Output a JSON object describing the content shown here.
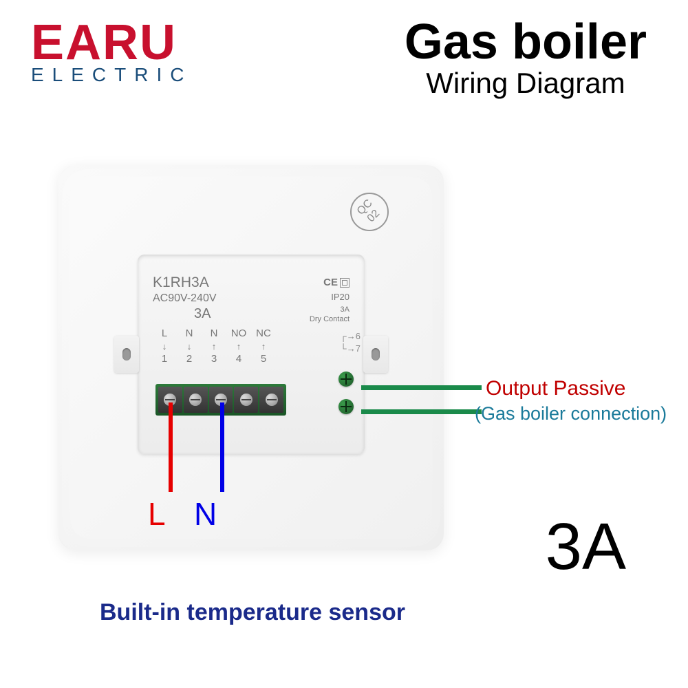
{
  "logo": {
    "main": "EARU",
    "sub": "ELECTRIC",
    "main_color": "#c8102e",
    "sub_color": "#1a4d7a"
  },
  "title": {
    "main": "Gas boiler",
    "sub": "Wiring Diagram"
  },
  "qc": "QC\n02",
  "module": {
    "model": "K1RH3A",
    "voltage": "AC90V-240V",
    "cert": "CE",
    "ip": "IP20",
    "amp": "3A",
    "contact": "Dry Contact",
    "amp_small": "3A",
    "terminals": [
      {
        "name": "L",
        "num": "1",
        "dir": "down"
      },
      {
        "name": "N",
        "num": "2",
        "dir": "down"
      },
      {
        "name": "N",
        "num": "3",
        "dir": "up"
      },
      {
        "name": "NO",
        "num": "4",
        "dir": "up"
      },
      {
        "name": "NC",
        "num": "5",
        "dir": "up"
      }
    ],
    "side_terms": {
      "a": "6",
      "b": "7"
    }
  },
  "wires": {
    "l_label": "L",
    "l_color": "#e60000",
    "n_label": "N",
    "n_color": "#0000e6",
    "output_color": "#1a8a4a"
  },
  "output": {
    "line1": "Output Passive",
    "line2": "(Gas boiler connection)",
    "line1_color": "#c00000",
    "line2_color": "#1a7a9a"
  },
  "amp_rating": "3A",
  "sensor_note": "Built-in temperature sensor",
  "sensor_color": "#1a2a8a"
}
